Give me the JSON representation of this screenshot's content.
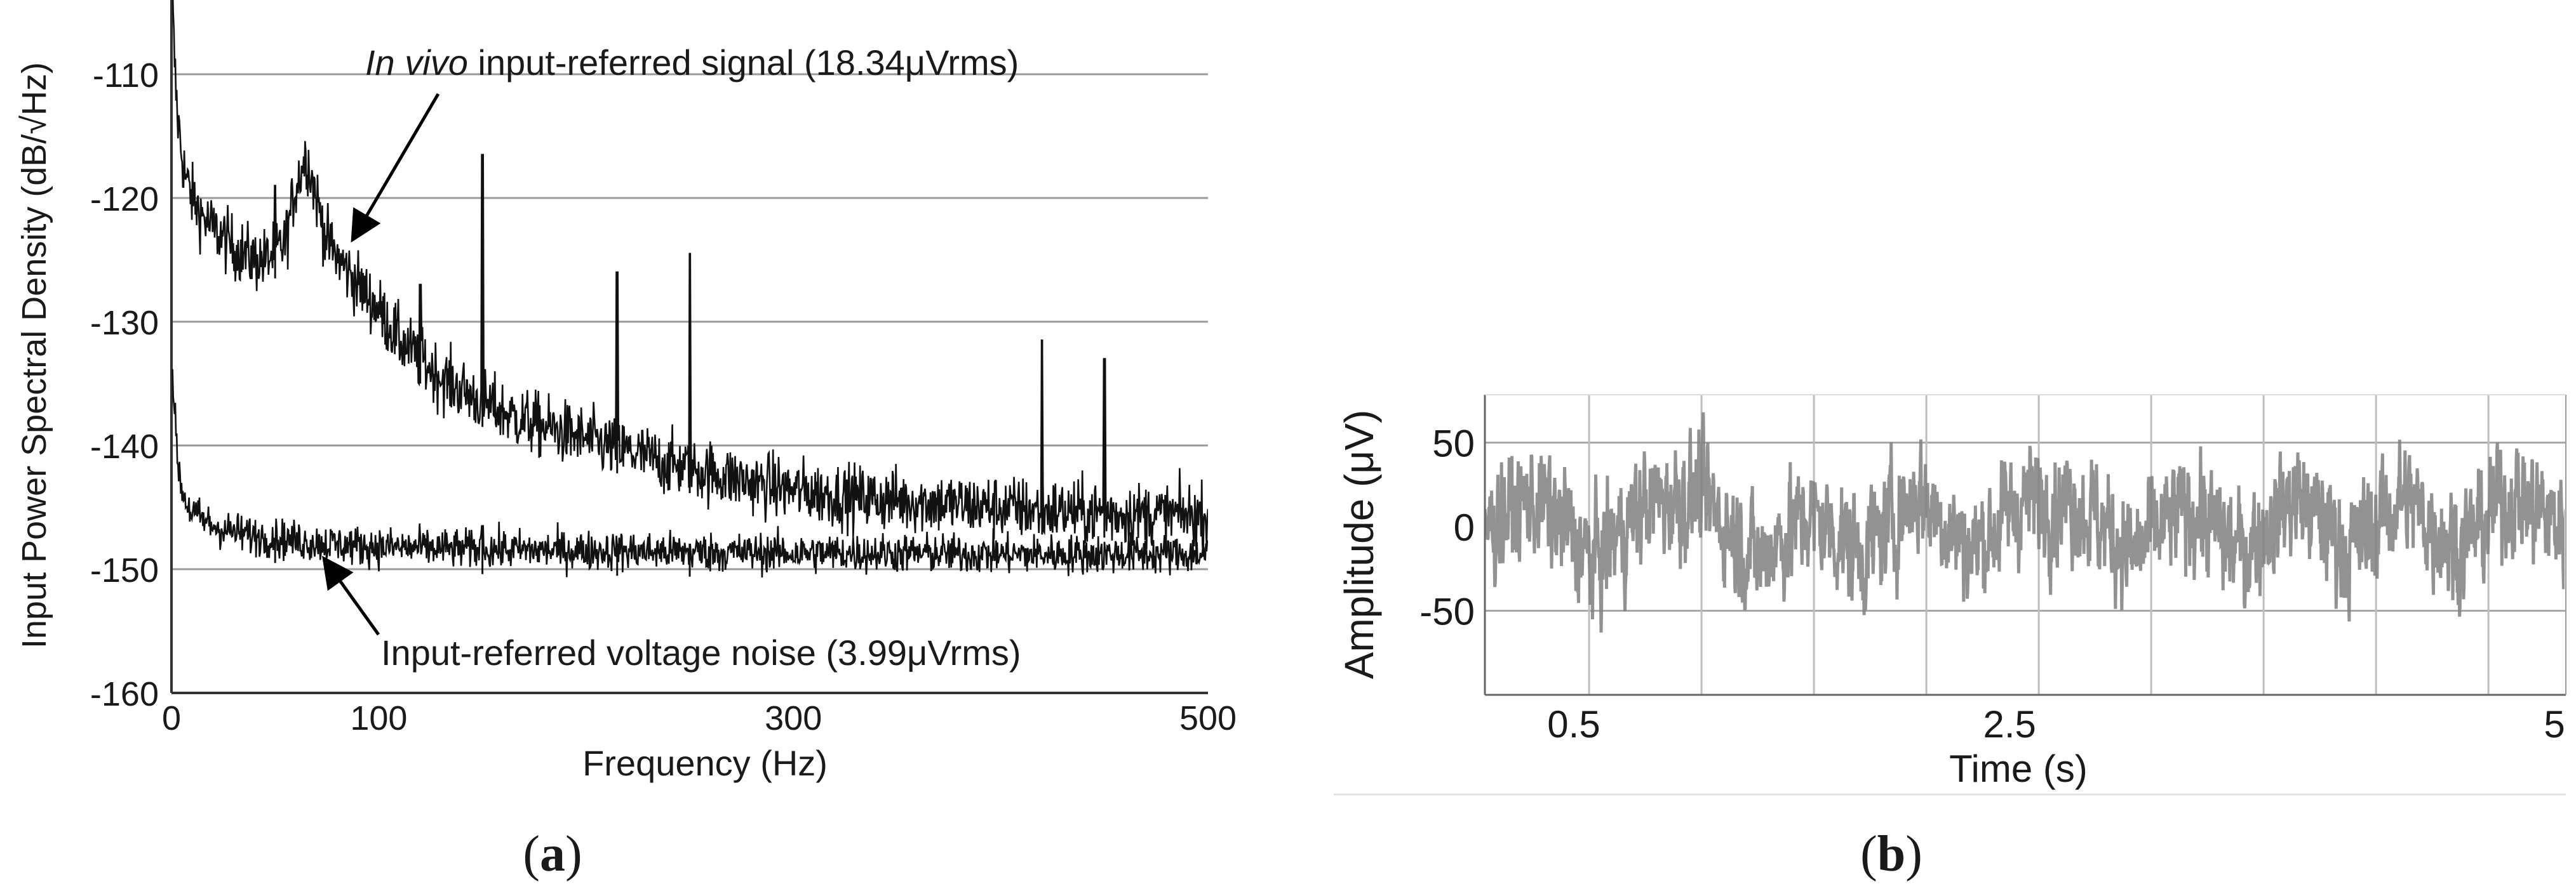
{
  "chart_data": [
    {
      "panel_label": "a",
      "type": "line",
      "xlabel": "Frequency (Hz)",
      "ylabel": "Input Power Spectral Density (dB/√Hz)",
      "xlim": [
        0,
        500
      ],
      "ylim": [
        -160,
        -104
      ],
      "xticks": [
        0,
        100,
        300,
        500
      ],
      "yticks": [
        -110,
        -120,
        -130,
        -140,
        -150,
        -160
      ],
      "grid": "horizontal",
      "annotations": [
        {
          "italic": "In vivo",
          "text": " input-referred signal (18.34μVrms)",
          "target": [
            85,
            -123.5
          ]
        },
        {
          "italic": "",
          "text": "Input-referred voltage noise (3.99μVrms)",
          "target": [
            70,
            -148.5
          ]
        }
      ],
      "series": [
        {
          "color": "#111111",
          "x": [
            0.5,
            1,
            2,
            3,
            5,
            7,
            10,
            15,
            20,
            25,
            30,
            35,
            40,
            45,
            50,
            55,
            60,
            65,
            70,
            75,
            80,
            90,
            100,
            110,
            120,
            130,
            140,
            150,
            160,
            170,
            180,
            190,
            200,
            220,
            240,
            260,
            280,
            300,
            320,
            340,
            360,
            380,
            400,
            420,
            440,
            460,
            480,
            500
          ],
          "y": [
            -104,
            -107,
            -111,
            -113.5,
            -116.5,
            -118.5,
            -120,
            -121.5,
            -122.5,
            -123.2,
            -124,
            -124.5,
            -125,
            -125,
            -124.5,
            -123.5,
            -119,
            -116.5,
            -120,
            -123.5,
            -124.8,
            -127,
            -129,
            -131.5,
            -133,
            -134.5,
            -135.5,
            -136.5,
            -137.3,
            -138,
            -138.5,
            -139,
            -139.5,
            -140.5,
            -141.5,
            -142.2,
            -143,
            -143.6,
            -144,
            -144.3,
            -144.5,
            -144.8,
            -145,
            -145.2,
            -145.4,
            -145.5,
            -145.6,
            -145.7
          ],
          "spikes": [
            [
              50,
              -119
            ],
            [
              120,
              -127
            ],
            [
              150,
              -116.5
            ],
            [
              215,
              -126
            ],
            [
              250,
              -124.5
            ],
            [
              420,
              -131.5
            ],
            [
              450,
              -133
            ]
          ]
        },
        {
          "color": "#111111",
          "x": [
            0.5,
            1,
            2,
            3,
            4,
            5,
            7,
            10,
            15,
            20,
            30,
            40,
            50,
            60,
            80,
            100,
            150,
            200,
            250,
            300,
            350,
            400,
            450,
            500
          ],
          "y": [
            -133,
            -136,
            -139,
            -141,
            -142.5,
            -143.5,
            -144.5,
            -145.5,
            -146,
            -146.5,
            -147,
            -147.3,
            -147.5,
            -147.7,
            -148,
            -148.2,
            -148.4,
            -148.5,
            -148.6,
            -148.7,
            -148.7,
            -148.8,
            -148.8,
            -148.8
          ],
          "spikes": [
            [
              50,
              -148
            ],
            [
              150,
              -146.5
            ],
            [
              215,
              -148
            ],
            [
              250,
              -148
            ]
          ]
        }
      ]
    },
    {
      "panel_label": "b",
      "type": "line",
      "xlabel": "Time (s)",
      "ylabel": "Amplitude (μV)",
      "xlim": [
        0,
        5
      ],
      "ylim": [
        -100,
        80
      ],
      "xticks": [
        0.5,
        2.5,
        5
      ],
      "yticks": [
        50,
        0,
        -50
      ],
      "grid": "both",
      "vertical_gridlines": [
        0.5,
        1,
        1.5,
        2,
        2.5,
        3,
        3.5,
        4,
        4.5
      ],
      "series": [
        {
          "color": "#7f7f7f",
          "description_values": "band-limited noise centred on 0 μV, peaks approx ±60 μV",
          "x": [
            0.0,
            0.25,
            0.5,
            0.75,
            1.0,
            1.25,
            1.5,
            1.75,
            2.0,
            2.25,
            2.5,
            2.75,
            3.0,
            3.25,
            3.5,
            3.75,
            4.0,
            4.25,
            4.5,
            4.75,
            5.0
          ],
          "y": [
            0,
            45,
            -60,
            40,
            55,
            -55,
            20,
            -45,
            60,
            -40,
            50,
            40,
            -50,
            35,
            -45,
            55,
            -40,
            50,
            -35,
            55,
            0
          ]
        }
      ]
    }
  ]
}
